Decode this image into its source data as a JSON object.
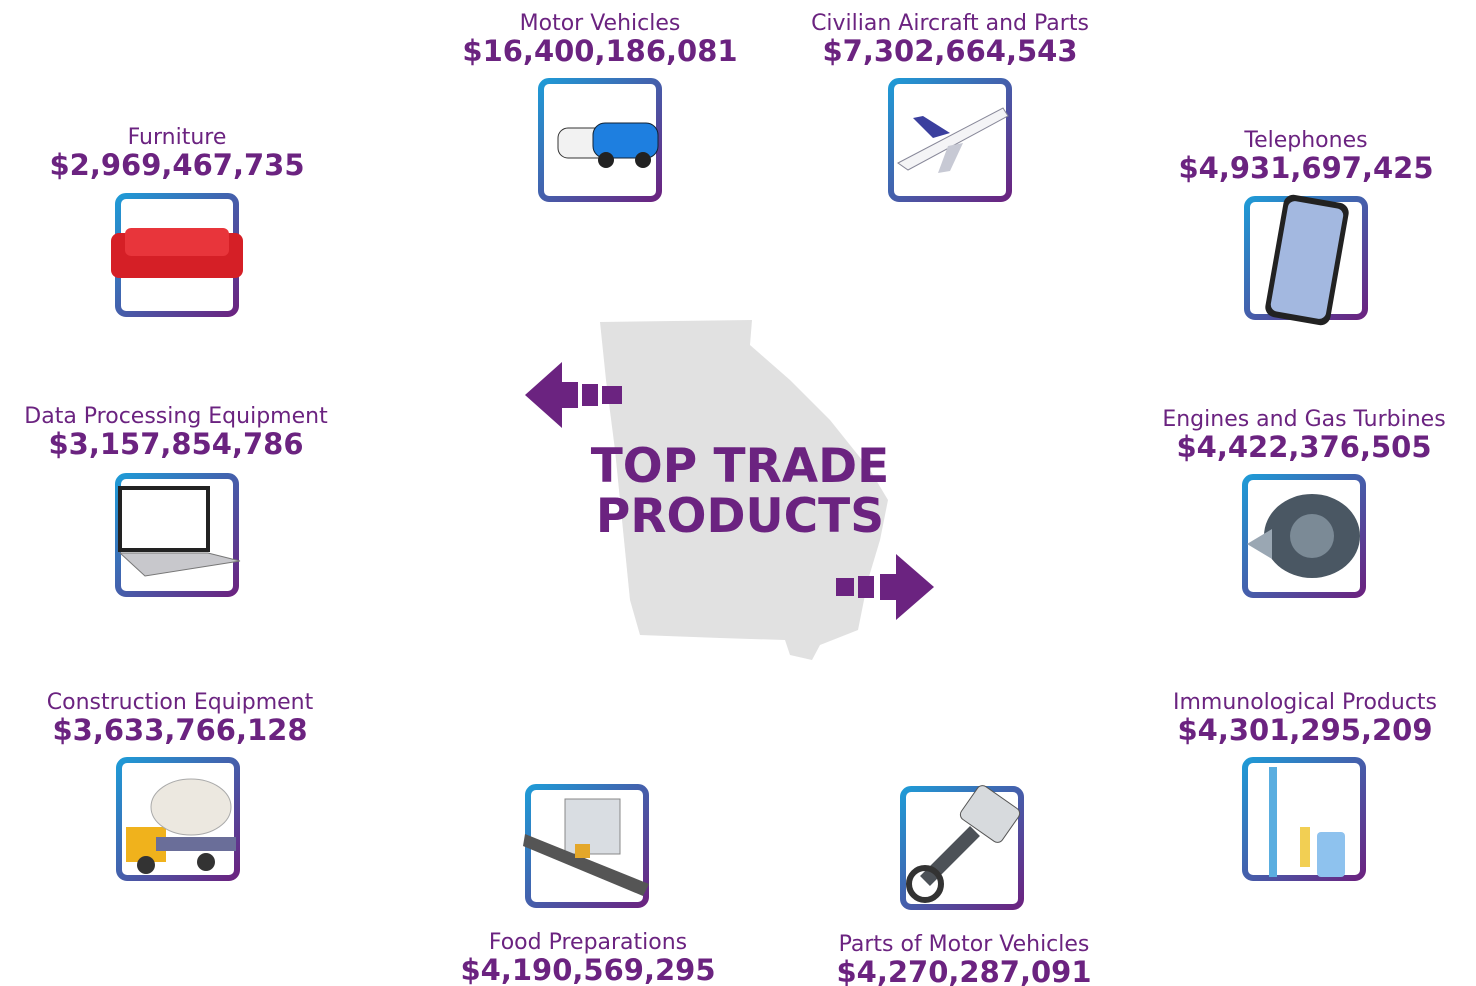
{
  "title": [
    "TOP TRADE",
    "PRODUCTS"
  ],
  "products": [
    {
      "label": "Motor Vehicles",
      "value": "$16,400,186,081"
    },
    {
      "label": "Civilian Aircraft and Parts",
      "value": "$7,302,664,543"
    },
    {
      "label": "Furniture",
      "value": "$2,969,467,735"
    },
    {
      "label": "Telephones",
      "value": "$4,931,697,425"
    },
    {
      "label": "Data Processing Equipment",
      "value": "$3,157,854,786"
    },
    {
      "label": "Engines and Gas Turbines",
      "value": "$4,422,376,505"
    },
    {
      "label": "Construction Equipment",
      "value": "$3,633,766,128"
    },
    {
      "label": "Immunological Products",
      "value": "$4,301,295,209"
    },
    {
      "label": "Food Preparations",
      "value": "$4,190,569,295"
    },
    {
      "label": "Parts of Motor Vehicles",
      "value": "$4,270,287,091"
    }
  ]
}
